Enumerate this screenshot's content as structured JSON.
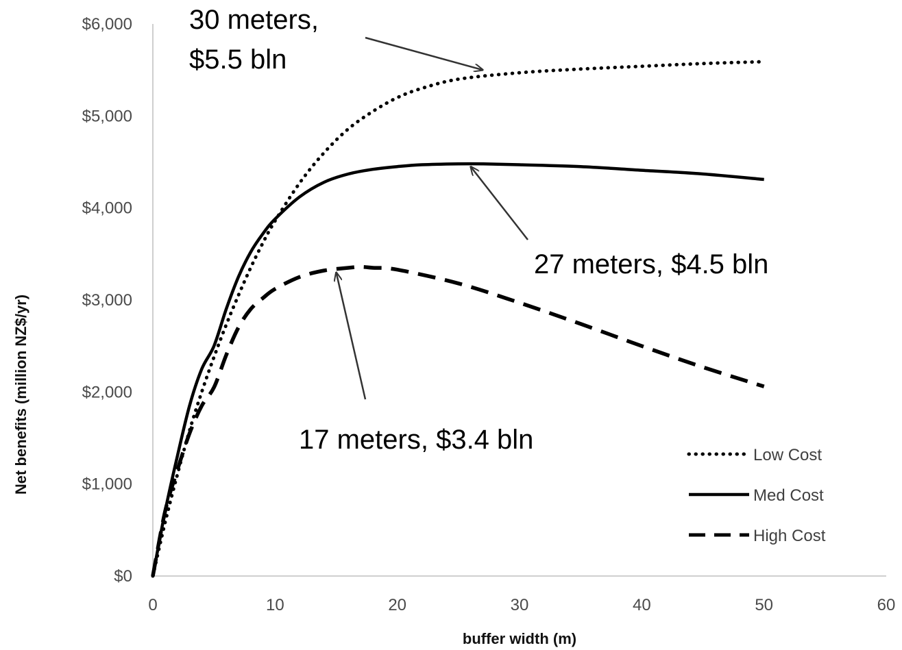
{
  "chart_data": {
    "type": "line",
    "xlabel": "buffer width (m)",
    "ylabel": "Net benefits (million NZ$/yr)",
    "xlim": [
      0,
      60
    ],
    "ylim": [
      0,
      6000
    ],
    "x_ticks": [
      "0",
      "10",
      "20",
      "30",
      "40",
      "50",
      "60"
    ],
    "y_ticks": [
      "$0",
      "$1,000",
      "$2,000",
      "$3,000",
      "$4,000",
      "$5,000",
      "$6,000"
    ],
    "grid": false,
    "legend_position": "bottom-right",
    "series": [
      {
        "name": "Low Cost",
        "style": "dotted",
        "x": [
          0,
          1,
          2,
          3,
          4,
          5,
          6,
          7,
          8,
          9,
          10,
          12,
          14,
          16,
          18,
          20,
          22,
          25,
          30,
          35,
          40,
          45,
          50
        ],
        "y": [
          0,
          580,
          1100,
          1580,
          2000,
          2380,
          2730,
          3050,
          3350,
          3620,
          3860,
          4270,
          4600,
          4860,
          5050,
          5200,
          5300,
          5400,
          5470,
          5510,
          5540,
          5570,
          5590
        ]
      },
      {
        "name": "Med Cost",
        "style": "solid",
        "x": [
          0,
          1,
          2,
          3,
          4,
          5,
          6,
          7,
          8,
          9,
          10,
          12,
          14,
          16,
          18,
          20,
          22,
          25,
          27,
          30,
          35,
          40,
          45,
          50
        ],
        "y": [
          0,
          700,
          1300,
          1850,
          2250,
          2500,
          2900,
          3250,
          3520,
          3720,
          3880,
          4120,
          4280,
          4370,
          4420,
          4450,
          4470,
          4480,
          4480,
          4470,
          4450,
          4410,
          4370,
          4310
        ]
      },
      {
        "name": "High Cost",
        "style": "dashed",
        "x": [
          0,
          1,
          2,
          3,
          4,
          5,
          6,
          7,
          8,
          9,
          10,
          12,
          14,
          16,
          17,
          18,
          20,
          25,
          30,
          35,
          40,
          45,
          50
        ],
        "y": [
          0,
          700,
          1150,
          1550,
          1850,
          2050,
          2400,
          2700,
          2900,
          3020,
          3120,
          3250,
          3320,
          3350,
          3360,
          3350,
          3330,
          3180,
          2970,
          2740,
          2500,
          2270,
          2060
        ]
      }
    ],
    "annotations": [
      {
        "line1": "30 meters,",
        "line2": "$5.5 bln",
        "x": 27,
        "y": 5500
      },
      {
        "line1": "27 meters, $4.5 bln",
        "x": 26,
        "y": 4450
      },
      {
        "line1": "17 meters, $3.4 bln",
        "x": 15,
        "y": 3300
      }
    ]
  }
}
